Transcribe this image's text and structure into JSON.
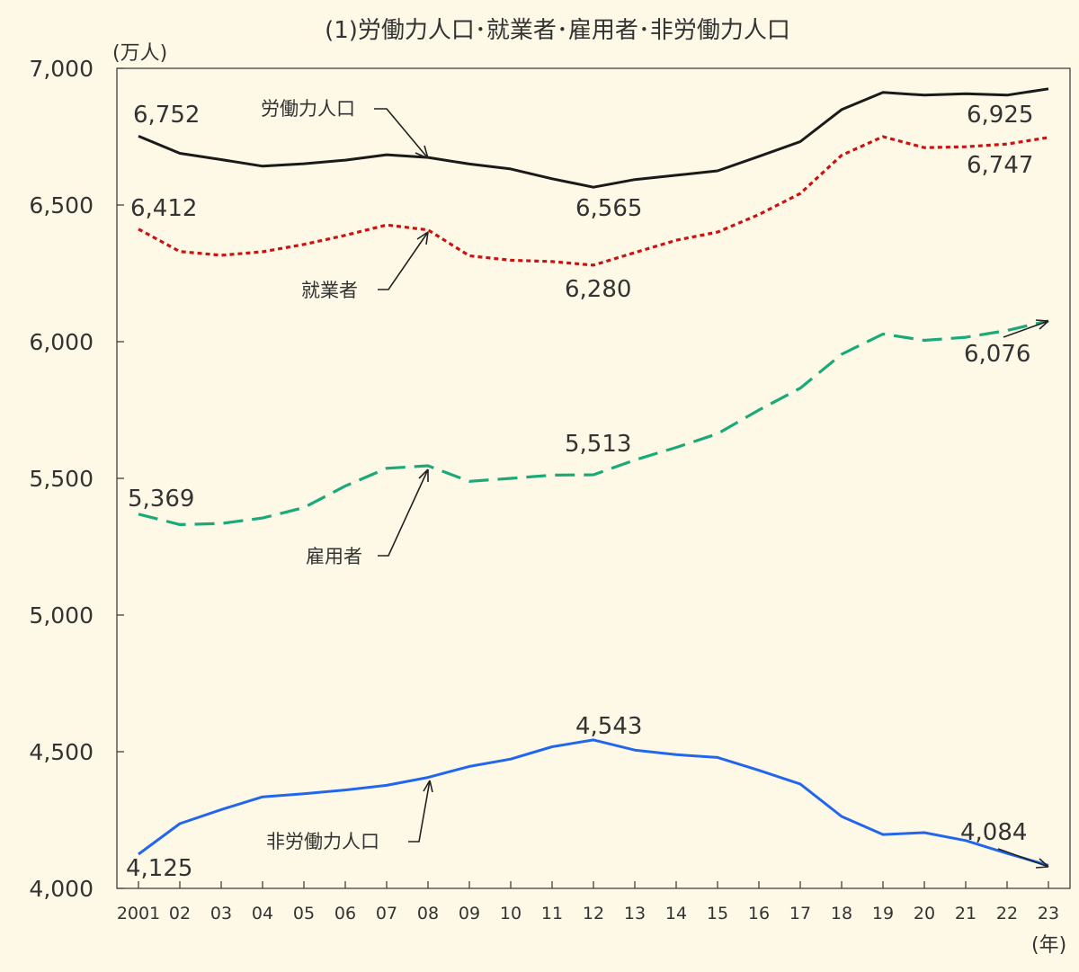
{
  "chart_data": {
    "type": "line",
    "title": "(1)労働力人口･就業者･雇用者･非労働力人口",
    "ylabel": "(万人)",
    "xlabel": "(年)",
    "ylim": [
      4000,
      7000
    ],
    "yticks": [
      4000,
      4500,
      5000,
      5500,
      6000,
      6500,
      7000
    ],
    "ytick_labels": [
      "4,000",
      "4,500",
      "5,000",
      "5,500",
      "6,000",
      "6,500",
      "7,000"
    ],
    "categories": [
      "2001",
      "02",
      "03",
      "04",
      "05",
      "06",
      "07",
      "08",
      "09",
      "10",
      "11",
      "12",
      "13",
      "14",
      "15",
      "16",
      "17",
      "18",
      "19",
      "20",
      "21",
      "22",
      "23"
    ],
    "series": [
      {
        "name": "労働力人口",
        "color": "#1a1a1a",
        "style": "solid",
        "values": [
          6752,
          6689,
          6666,
          6642,
          6651,
          6664,
          6684,
          6674,
          6650,
          6632,
          6596,
          6565,
          6593,
          6609,
          6625,
          6678,
          6732,
          6849,
          6912,
          6902,
          6907,
          6902,
          6925
        ]
      },
      {
        "name": "就業者",
        "color": "#cc1111",
        "style": "dotted",
        "values": [
          6412,
          6330,
          6316,
          6329,
          6356,
          6389,
          6427,
          6409,
          6314,
          6298,
          6293,
          6280,
          6326,
          6371,
          6401,
          6465,
          6542,
          6682,
          6750,
          6710,
          6713,
          6723,
          6747
        ]
      },
      {
        "name": "雇用者",
        "color": "#1aaa78",
        "style": "dashed",
        "values": [
          5369,
          5331,
          5335,
          5355,
          5393,
          5472,
          5537,
          5546,
          5489,
          5500,
          5512,
          5513,
          5567,
          5613,
          5663,
          5750,
          5830,
          5954,
          6028,
          6005,
          6016,
          6041,
          6076
        ]
      },
      {
        "name": "非労働力人口",
        "color": "#2266ee",
        "style": "solid",
        "values": [
          4125,
          4237,
          4288,
          4335,
          4346,
          4360,
          4377,
          4406,
          4446,
          4473,
          4518,
          4543,
          4506,
          4489,
          4479,
          4432,
          4382,
          4263,
          4197,
          4204,
          4175,
          4128,
          4084
        ]
      }
    ],
    "data_labels": {
      "labor_start": "6,752",
      "labor_min": "6,565",
      "labor_end": "6,925",
      "employed_start": "6,412",
      "employed_min": "6,280",
      "employed_end": "6,747",
      "employee_start": "5,369",
      "employee_mid": "5,513",
      "employee_end": "6,076",
      "notlabor_start": "4,125",
      "notlabor_max": "4,543",
      "notlabor_end": "4,084"
    }
  }
}
